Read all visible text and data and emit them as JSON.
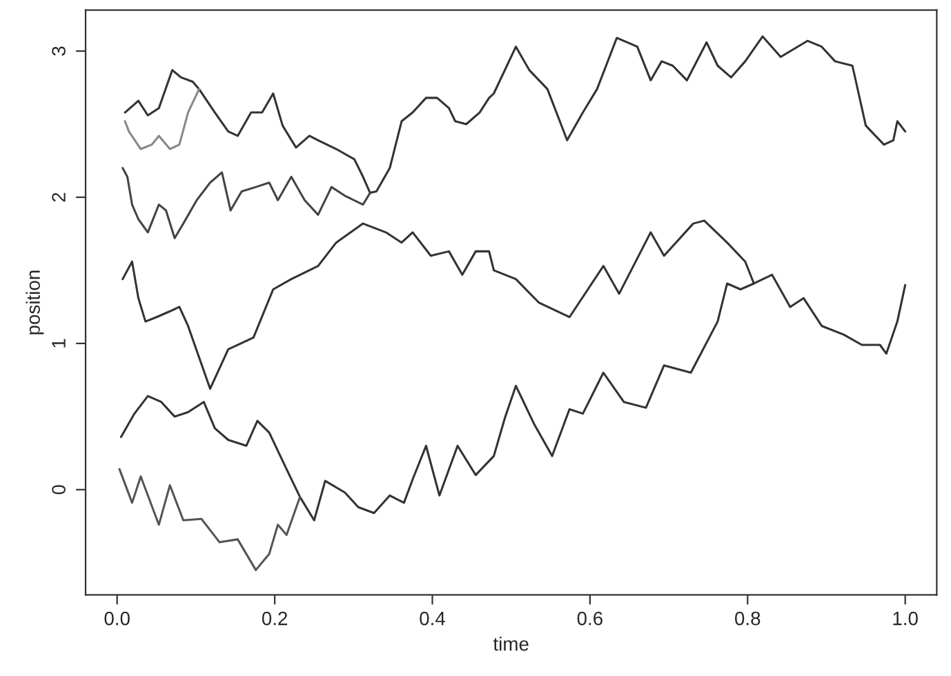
{
  "chart_data": {
    "type": "line",
    "xlabel": "time",
    "ylabel": "position",
    "xlim": [
      -0.04,
      1.04
    ],
    "ylim": [
      -0.72,
      3.28
    ],
    "xticks": [
      {
        "value": 0,
        "label": "0.0"
      },
      {
        "value": 0.2,
        "label": "0.2"
      },
      {
        "value": 0.4,
        "label": "0.4"
      },
      {
        "value": 0.6,
        "label": "0.6"
      },
      {
        "value": 0.8,
        "label": "0.8"
      },
      {
        "value": 1,
        "label": "1.0"
      }
    ],
    "yticks": [
      0,
      1,
      2,
      3
    ],
    "grid": false,
    "legend": false,
    "marker": "none",
    "line_style": "solid",
    "series": [
      {
        "color": "#333333",
        "x": [
          0.01,
          0.027,
          0.039,
          0.053,
          0.07,
          0.081,
          0.096,
          0.104,
          0.124,
          0.141,
          0.153,
          0.17,
          0.184,
          0.198,
          0.21,
          0.227,
          0.244,
          0.255,
          0.278,
          0.301,
          0.312,
          0.321,
          0.329,
          0.346,
          0.361,
          0.375,
          0.392,
          0.406,
          0.421,
          0.429,
          0.443,
          0.46,
          0.472,
          0.478,
          0.506,
          0.523,
          0.546,
          0.571,
          0.591,
          0.609,
          0.634,
          0.66,
          0.677,
          0.691,
          0.705,
          0.723,
          0.748,
          0.762,
          0.779,
          0.797,
          0.819,
          0.842,
          0.876,
          0.894,
          0.911,
          0.933,
          0.95,
          0.973,
          0.985,
          0.99,
          1.0
        ],
        "values": [
          2.58,
          2.66,
          2.56,
          2.61,
          2.87,
          2.82,
          2.79,
          2.74,
          2.58,
          2.45,
          2.42,
          2.58,
          2.58,
          2.71,
          2.49,
          2.34,
          2.42,
          2.39,
          2.33,
          2.26,
          2.14,
          2.03,
          2.04,
          2.2,
          2.52,
          2.58,
          2.68,
          2.68,
          2.61,
          2.52,
          2.5,
          2.58,
          2.68,
          2.71,
          3.03,
          2.87,
          2.74,
          2.39,
          2.58,
          2.74,
          3.09,
          3.03,
          2.8,
          2.93,
          2.9,
          2.8,
          3.06,
          2.9,
          2.82,
          2.93,
          3.1,
          2.96,
          3.07,
          3.03,
          2.93,
          2.9,
          2.49,
          2.36,
          2.39,
          2.52,
          2.45
        ]
      },
      {
        "color": "#888888",
        "x": [
          0.01,
          0.015,
          0.03,
          0.044,
          0.053,
          0.067,
          0.079,
          0.09,
          0.104
        ],
        "values": [
          2.52,
          2.45,
          2.33,
          2.36,
          2.42,
          2.33,
          2.36,
          2.58,
          2.74
        ]
      },
      {
        "color": "#444444",
        "x": [
          0.007,
          0.013,
          0.019,
          0.027,
          0.039,
          0.053,
          0.062,
          0.073,
          0.084,
          0.101,
          0.118,
          0.133,
          0.144,
          0.158,
          0.176,
          0.193,
          0.204,
          0.221,
          0.238,
          0.255,
          0.272,
          0.289,
          0.312,
          0.321
        ],
        "values": [
          2.2,
          2.14,
          1.95,
          1.85,
          1.76,
          1.95,
          1.91,
          1.72,
          1.82,
          1.98,
          2.1,
          2.17,
          1.91,
          2.04,
          2.07,
          2.1,
          1.98,
          2.14,
          1.98,
          1.88,
          2.07,
          2.01,
          1.95,
          2.03
        ]
      },
      {
        "color": "#333333",
        "x": [
          0.007,
          0.019,
          0.027,
          0.036,
          0.05,
          0.067,
          0.079,
          0.09,
          0.118,
          0.141,
          0.173,
          0.198,
          0.221,
          0.255,
          0.278,
          0.312,
          0.341,
          0.361,
          0.375,
          0.398,
          0.421,
          0.438,
          0.455,
          0.472,
          0.478,
          0.506,
          0.535,
          0.574,
          0.617,
          0.637,
          0.677,
          0.694,
          0.731,
          0.745,
          0.774,
          0.797,
          0.808,
          0.831,
          0.854,
          0.871,
          0.894,
          0.922,
          0.945,
          0.968,
          0.976,
          0.99,
          1.0
        ],
        "values": [
          1.44,
          1.56,
          1.31,
          1.15,
          1.18,
          1.22,
          1.25,
          1.12,
          0.69,
          0.96,
          1.04,
          1.37,
          1.44,
          1.53,
          1.69,
          1.82,
          1.76,
          1.69,
          1.76,
          1.6,
          1.63,
          1.47,
          1.63,
          1.63,
          1.5,
          1.44,
          1.28,
          1.18,
          1.53,
          1.34,
          1.76,
          1.6,
          1.82,
          1.84,
          1.69,
          1.56,
          1.41,
          1.47,
          1.25,
          1.31,
          1.12,
          1.06,
          0.99,
          0.99,
          0.93,
          1.15,
          1.4
        ]
      },
      {
        "color": "#333333",
        "x": [
          0.005,
          0.022,
          0.039,
          0.056,
          0.073,
          0.09,
          0.11,
          0.124,
          0.141,
          0.164,
          0.178,
          0.193,
          0.215,
          0.232,
          0.25,
          0.264,
          0.289,
          0.306,
          0.326,
          0.346,
          0.364,
          0.375,
          0.392,
          0.409,
          0.432,
          0.455,
          0.478,
          0.492,
          0.506,
          0.529,
          0.552,
          0.574,
          0.591,
          0.617,
          0.643,
          0.671,
          0.694,
          0.728,
          0.762,
          0.774,
          0.791,
          0.808
        ],
        "values": [
          0.36,
          0.52,
          0.64,
          0.6,
          0.5,
          0.53,
          0.6,
          0.42,
          0.34,
          0.3,
          0.47,
          0.39,
          0.14,
          -0.05,
          -0.21,
          0.06,
          -0.02,
          -0.12,
          -0.16,
          -0.04,
          -0.09,
          0.07,
          0.3,
          -0.04,
          0.3,
          0.1,
          0.23,
          0.49,
          0.71,
          0.45,
          0.23,
          0.55,
          0.52,
          0.8,
          0.6,
          0.56,
          0.85,
          0.8,
          1.15,
          1.41,
          1.37,
          1.41
        ]
      },
      {
        "color": "#555555",
        "x": [
          0.003,
          0.01,
          0.019,
          0.03,
          0.053,
          0.067,
          0.084,
          0.107,
          0.13,
          0.153,
          0.176,
          0.193,
          0.204,
          0.215,
          0.232
        ],
        "values": [
          0.14,
          0.04,
          -0.09,
          0.09,
          -0.24,
          0.03,
          -0.21,
          -0.2,
          -0.36,
          -0.34,
          -0.55,
          -0.44,
          -0.24,
          -0.31,
          -0.05
        ]
      }
    ]
  }
}
